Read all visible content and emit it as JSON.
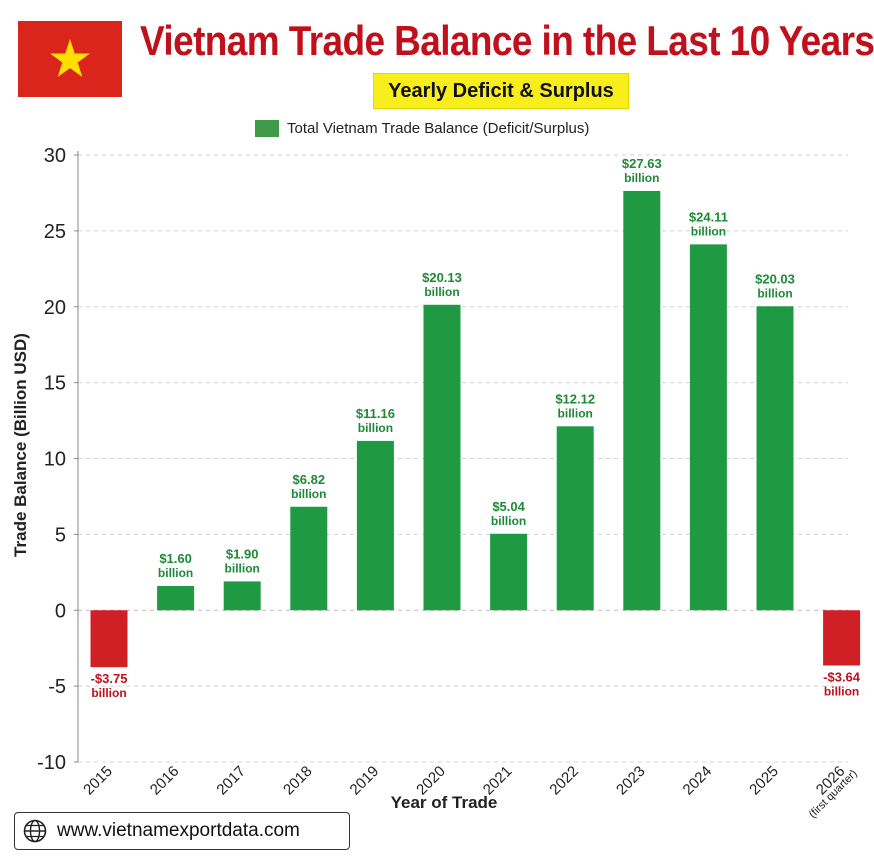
{
  "header": {
    "title": "Vietnam Trade Balance in the Last 10 Years",
    "subtitle": "Yearly Deficit & Surplus",
    "flag_icon": "vietnam-flag-icon",
    "flag_colors": {
      "field": "#da251d",
      "star": "#ffde00"
    }
  },
  "legend": {
    "label": "Total Vietnam Trade Balance (Deficit/Surplus)"
  },
  "footer": {
    "website": "www.vietnamexportdata.com",
    "icon": "globe-icon"
  },
  "colors": {
    "surplus": "#1f9a43",
    "deficit": "#d11f26",
    "surplus_label": "#1e8a37",
    "deficit_label": "#c0101c"
  },
  "chart_data": {
    "type": "bar",
    "title": "Vietnam Trade Balance in the Last 10 Years",
    "subtitle": "Yearly Deficit & Surplus",
    "xlabel": "Year of Trade",
    "ylabel": "Trade Balance (Billion USD)",
    "ylim": [
      -10,
      30
    ],
    "yticks": [
      30,
      25,
      20,
      15,
      10,
      5,
      0,
      -5,
      -10
    ],
    "grid": true,
    "legend_position": "top",
    "categories": [
      "2015",
      "2016",
      "2017",
      "2018",
      "2019",
      "2020",
      "2021",
      "2022",
      "2023",
      "2024",
      "2025",
      "2026"
    ],
    "category_notes": [
      "",
      "",
      "",
      "",
      "",
      "",
      "",
      "",
      "",
      "",
      "",
      "(first quarter)"
    ],
    "series": [
      {
        "name": "Total Vietnam Trade Balance (Deficit/Surplus)",
        "values": [
          -3.75,
          1.6,
          1.9,
          6.82,
          11.16,
          20.13,
          5.04,
          12.12,
          27.63,
          24.11,
          20.03,
          -3.64
        ]
      }
    ],
    "data_labels": [
      [
        "-$3.75",
        "billion"
      ],
      [
        "$1.60",
        "billion"
      ],
      [
        "$1.90",
        "billion"
      ],
      [
        "$6.82",
        "billion"
      ],
      [
        "$11.16",
        "billion"
      ],
      [
        "$20.13",
        "billion"
      ],
      [
        "$5.04",
        "billion"
      ],
      [
        "$12.12",
        "billion"
      ],
      [
        "$27.63",
        "billion"
      ],
      [
        "$24.11",
        "billion"
      ],
      [
        "$20.03",
        "billion"
      ],
      [
        "-$3.64",
        "billion"
      ]
    ]
  }
}
